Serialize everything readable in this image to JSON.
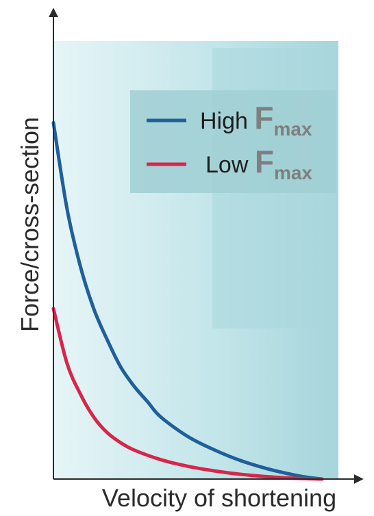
{
  "chart_data": {
    "type": "line",
    "xlabel": "Velocity of shortening",
    "ylabel": "Force/cross-section",
    "xlim": [
      0,
      1
    ],
    "ylim": [
      0,
      1
    ],
    "grid": false,
    "legend_position": "top-right",
    "series": [
      {
        "name": "High F max",
        "label_main": "High ",
        "label_symbol": "F",
        "label_sub": "max",
        "color": "#1f5f9a",
        "x": [
          0,
          0.05,
          0.1,
          0.15,
          0.2,
          0.25,
          0.3,
          0.35,
          0.4,
          0.5,
          0.6,
          0.7,
          0.8,
          0.9,
          0.95,
          1.0
        ],
        "y": [
          0.92,
          0.7,
          0.55,
          0.44,
          0.36,
          0.29,
          0.24,
          0.2,
          0.16,
          0.11,
          0.075,
          0.047,
          0.026,
          0.01,
          0.004,
          0.0
        ]
      },
      {
        "name": "Low F max",
        "label_main": "Low ",
        "label_symbol": "F",
        "label_sub": "max",
        "color": "#d8254a",
        "x": [
          0,
          0.05,
          0.1,
          0.15,
          0.2,
          0.25,
          0.3,
          0.4,
          0.5,
          0.6,
          0.7,
          0.8,
          0.9,
          1.0
        ],
        "y": [
          0.44,
          0.3,
          0.22,
          0.16,
          0.12,
          0.094,
          0.075,
          0.05,
          0.033,
          0.021,
          0.012,
          0.006,
          0.002,
          0.0
        ]
      }
    ]
  },
  "colors": {
    "panel_light": "#e6f5f7",
    "panel_dark": "#a3d3d9",
    "legend_box": "#a0cfd4",
    "axis": "#2a2a2a"
  }
}
